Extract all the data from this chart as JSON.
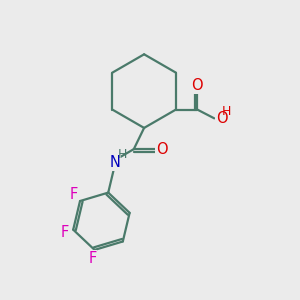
{
  "bg_color": "#ebebeb",
  "bond_color": "#4a7a6a",
  "bond_width": 1.6,
  "atom_colors": {
    "O": "#dd0000",
    "N": "#0000bb",
    "F": "#dd00bb",
    "H": "#dd0000"
  },
  "font_size_atom": 10.5,
  "font_size_H": 9.0
}
